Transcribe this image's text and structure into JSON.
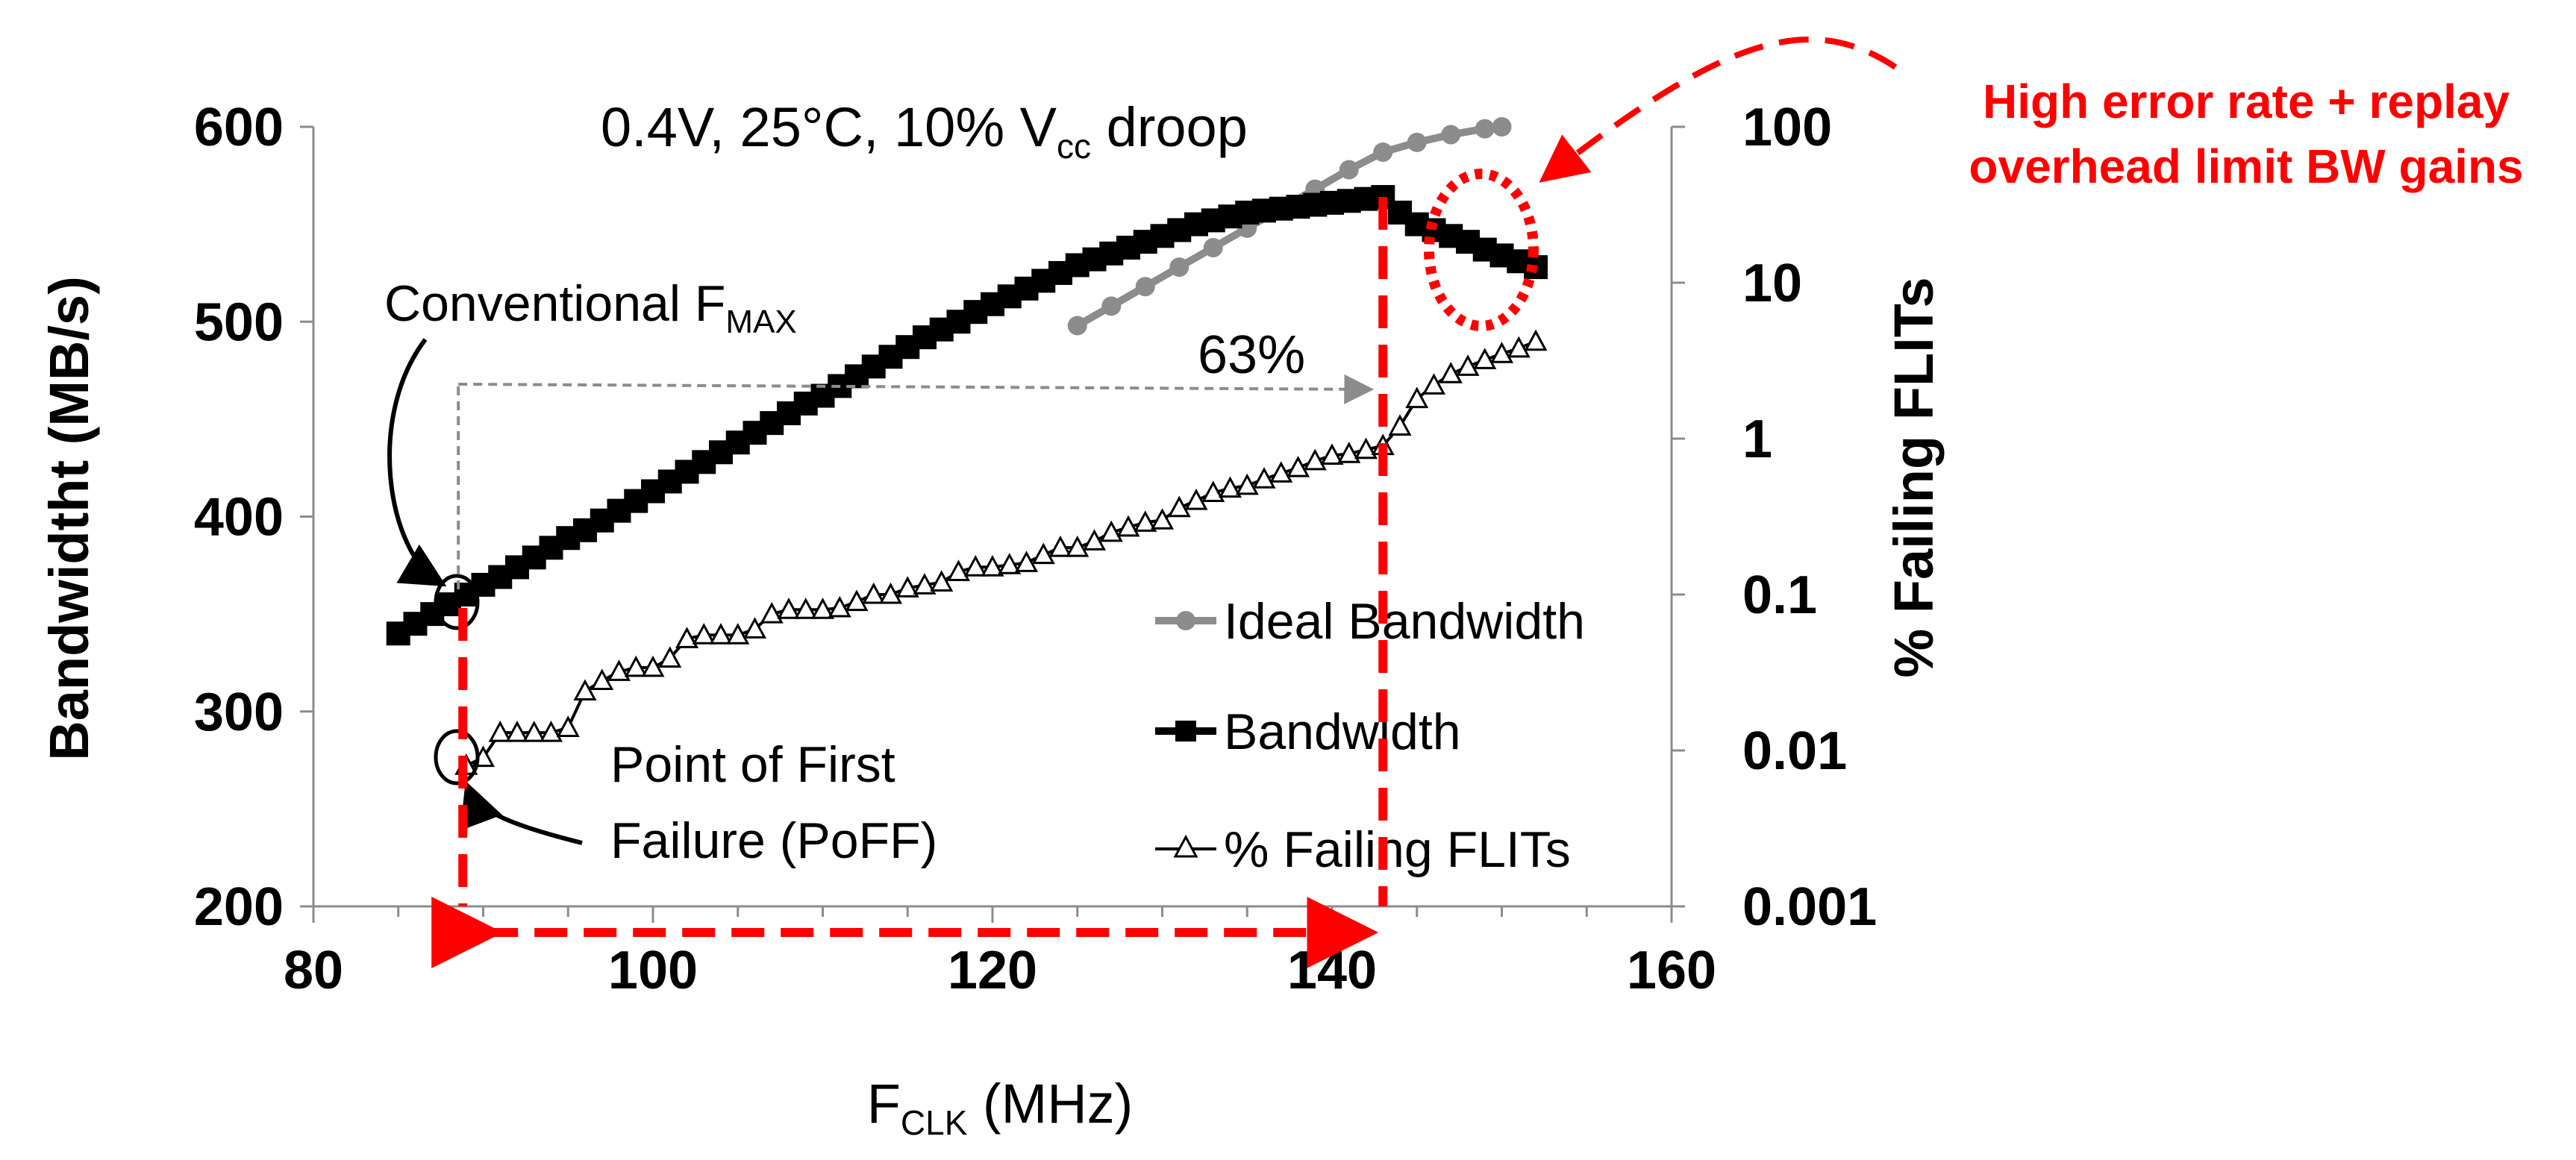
{
  "chart_data": {
    "type": "line",
    "title": "0.4V, 25°C, 10% V",
    "title_sub": "cc",
    "title_tail": " droop",
    "xlabel_main": "F",
    "xlabel_sub": "CLK",
    "xlabel_tail": " (MHz)",
    "ylabel": "Bandwidtht (MB/s)",
    "y2label": "% Failing FLITs",
    "xlim": [
      80,
      160
    ],
    "ylim": [
      200,
      600
    ],
    "y2lim": [
      0.001,
      100
    ],
    "y2scale": "log",
    "xticks": [
      "80",
      "100",
      "120",
      "140",
      "160"
    ],
    "yticks": [
      "200",
      "300",
      "400",
      "500",
      "600"
    ],
    "y2ticks": [
      "0.001",
      "0.01",
      "0.1",
      "1",
      "10",
      "100"
    ],
    "legend": [
      "Ideal Bandwidth",
      "Bandwidth",
      "% Failing FLITs"
    ],
    "series": [
      {
        "name": "Ideal Bandwidth",
        "axis": "left",
        "color": "#8c8c8c",
        "x": [
          125,
          127,
          129,
          131,
          133,
          135,
          137,
          139,
          141,
          143,
          145,
          147,
          149,
          150
        ],
        "y": [
          498,
          508,
          518,
          528,
          538,
          548,
          558,
          568,
          578,
          587,
          592,
          596,
          599,
          600
        ]
      },
      {
        "name": "Bandwidth",
        "axis": "left",
        "color": "#000000",
        "x": [
          85,
          86,
          87,
          88,
          89,
          90,
          91,
          92,
          93,
          94,
          95,
          96,
          97,
          98,
          99,
          100,
          101,
          102,
          103,
          104,
          105,
          106,
          107,
          108,
          109,
          110,
          111,
          112,
          113,
          114,
          115,
          116,
          117,
          118,
          119,
          120,
          121,
          122,
          123,
          124,
          125,
          126,
          127,
          128,
          129,
          130,
          131,
          132,
          133,
          134,
          135,
          136,
          137,
          138,
          139,
          140,
          141,
          142,
          143,
          144,
          145,
          146,
          147,
          148,
          149,
          150,
          151,
          152
        ],
        "y": [
          340,
          345,
          350,
          355,
          360,
          365,
          369,
          374,
          379,
          384,
          389,
          393,
          398,
          403,
          408,
          413,
          418,
          423,
          428,
          433,
          438,
          443,
          448,
          453,
          458,
          462,
          467,
          472,
          477,
          482,
          487,
          492,
          496,
          500,
          505,
          509,
          513,
          517,
          521,
          525,
          529,
          532,
          535,
          538,
          541,
          544,
          547,
          550,
          552,
          554,
          556,
          557,
          558,
          559,
          560,
          561,
          562,
          563,
          564,
          556,
          550,
          547,
          544,
          541,
          537,
          534,
          531,
          528
        ]
      },
      {
        "name": "% Failing FLITs",
        "axis": "right",
        "color": "#000000",
        "x": [
          89,
          90,
          91,
          92,
          93,
          94,
          95,
          96,
          97,
          98,
          99,
          100,
          101,
          102,
          103,
          104,
          105,
          106,
          107,
          108,
          109,
          110,
          111,
          112,
          113,
          114,
          115,
          116,
          117,
          118,
          119,
          120,
          121,
          122,
          123,
          124,
          125,
          126,
          127,
          128,
          129,
          130,
          131,
          132,
          133,
          134,
          135,
          136,
          137,
          138,
          139,
          140,
          141,
          142,
          143,
          144,
          145,
          146,
          147,
          148,
          149,
          150,
          151,
          152
        ],
        "y": [
          0.008,
          0.009,
          0.013,
          0.013,
          0.013,
          0.013,
          0.014,
          0.024,
          0.028,
          0.032,
          0.034,
          0.034,
          0.039,
          0.052,
          0.055,
          0.055,
          0.055,
          0.06,
          0.075,
          0.08,
          0.08,
          0.08,
          0.082,
          0.09,
          0.1,
          0.1,
          0.11,
          0.115,
          0.12,
          0.14,
          0.15,
          0.15,
          0.155,
          0.16,
          0.18,
          0.2,
          0.2,
          0.22,
          0.25,
          0.27,
          0.29,
          0.3,
          0.36,
          0.4,
          0.45,
          0.48,
          0.5,
          0.55,
          0.6,
          0.65,
          0.72,
          0.78,
          0.8,
          0.85,
          0.9,
          1.2,
          1.8,
          2.2,
          2.6,
          2.9,
          3.2,
          3.5,
          3.8,
          4.2
        ]
      }
    ],
    "annotations": {
      "conventional_fmax_main": "Conventional F",
      "conventional_fmax_sub": "MAX",
      "poff_line1": "Point of First",
      "poff_line2": "Failure (PoFF)",
      "gain_label": "63%",
      "high_error_line1": "High error rate + replay",
      "high_error_line2": "overhead limit BW gains"
    }
  }
}
